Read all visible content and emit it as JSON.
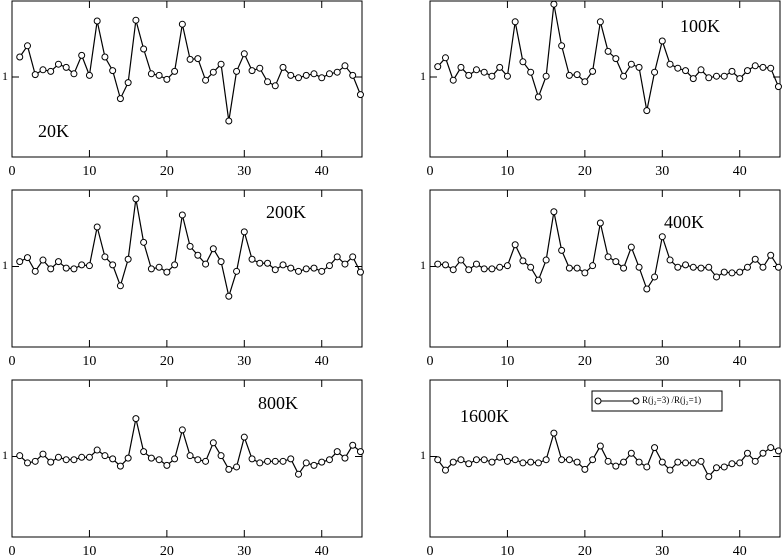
{
  "chart_data": [
    {
      "type": "line",
      "annotation": "20K",
      "x": [
        1,
        2,
        3,
        4,
        5,
        6,
        7,
        8,
        9,
        10,
        11,
        12,
        13,
        14,
        15,
        16,
        17,
        18,
        19,
        20,
        21,
        22,
        23,
        24,
        25,
        26,
        27,
        28,
        29,
        30,
        31,
        32,
        33,
        34,
        35,
        36,
        37,
        38,
        39,
        40,
        41,
        42,
        43,
        44,
        45
      ],
      "xlim": [
        0,
        45.2
      ],
      "xticks": [
        0,
        10,
        20,
        30,
        40
      ],
      "ylim": [
        0,
        1.95
      ],
      "yticks": [
        1
      ],
      "series": [
        {
          "color": "#000000",
          "values": [
            1.25,
            1.39,
            1.03,
            1.09,
            1.07,
            1.16,
            1.12,
            1.04,
            1.27,
            1.02,
            1.7,
            1.25,
            1.08,
            0.73,
            0.93,
            1.71,
            1.35,
            1.04,
            1.02,
            0.97,
            1.07,
            1.66,
            1.22,
            1.23,
            0.96,
            1.06,
            1.16,
            0.45,
            1.07,
            1.29,
            1.08,
            1.11,
            0.94,
            0.89,
            1.12,
            1.02,
            0.99,
            1.02,
            1.04,
            0.99,
            1.04,
            1.06,
            1.14,
            1.02,
            0.78
          ]
        }
      ]
    },
    {
      "type": "line",
      "annotation": "100K",
      "x": [
        1,
        2,
        3,
        4,
        5,
        6,
        7,
        8,
        9,
        10,
        11,
        12,
        13,
        14,
        15,
        16,
        17,
        18,
        19,
        20,
        21,
        22,
        23,
        24,
        25,
        26,
        27,
        28,
        29,
        30,
        31,
        32,
        33,
        34,
        35,
        36,
        37,
        38,
        39,
        40,
        41,
        42,
        43,
        44,
        45
      ],
      "xlim": [
        0,
        45.2
      ],
      "xticks": [
        0,
        10,
        20,
        30,
        40
      ],
      "ylim": [
        0,
        1.95
      ],
      "yticks": [
        1
      ],
      "series": [
        {
          "color": "#000000",
          "values": [
            1.13,
            1.24,
            0.96,
            1.12,
            1.02,
            1.09,
            1.06,
            1.01,
            1.12,
            1.01,
            1.69,
            1.19,
            1.06,
            0.75,
            1.01,
            1.91,
            1.39,
            1.02,
            1.03,
            0.94,
            1.07,
            1.69,
            1.32,
            1.23,
            1.01,
            1.16,
            1.12,
            0.58,
            1.06,
            1.45,
            1.16,
            1.11,
            1.08,
            0.98,
            1.09,
            0.99,
            1.01,
            1.01,
            1.07,
            0.98,
            1.08,
            1.14,
            1.12,
            1.11,
            0.88
          ]
        }
      ]
    },
    {
      "type": "line",
      "annotation": "200K",
      "x": [
        1,
        2,
        3,
        4,
        5,
        6,
        7,
        8,
        9,
        10,
        11,
        12,
        13,
        14,
        15,
        16,
        17,
        18,
        19,
        20,
        21,
        22,
        23,
        24,
        25,
        26,
        27,
        28,
        29,
        30,
        31,
        32,
        33,
        34,
        35,
        36,
        37,
        38,
        39,
        40,
        41,
        42,
        43,
        44,
        45
      ],
      "xlim": [
        0,
        45.2
      ],
      "xticks": [
        0,
        10,
        20,
        30,
        40
      ],
      "ylim": [
        0,
        1.95
      ],
      "yticks": [
        1
      ],
      "series": [
        {
          "color": "#000000",
          "values": [
            1.06,
            1.11,
            0.94,
            1.08,
            0.97,
            1.06,
            0.98,
            0.97,
            1.02,
            1.01,
            1.49,
            1.12,
            1.02,
            0.76,
            1.09,
            1.84,
            1.3,
            0.97,
            0.99,
            0.93,
            1.02,
            1.64,
            1.25,
            1.14,
            1.03,
            1.22,
            1.06,
            0.63,
            0.94,
            1.43,
            1.09,
            1.04,
            1.04,
            0.96,
            1.02,
            0.98,
            0.94,
            0.97,
            0.98,
            0.94,
            1.01,
            1.12,
            1.03,
            1.12,
            0.93
          ]
        }
      ]
    },
    {
      "type": "line",
      "annotation": "400K",
      "x": [
        1,
        2,
        3,
        4,
        5,
        6,
        7,
        8,
        9,
        10,
        11,
        12,
        13,
        14,
        15,
        16,
        17,
        18,
        19,
        20,
        21,
        22,
        23,
        24,
        25,
        26,
        27,
        28,
        29,
        30,
        31,
        32,
        33,
        34,
        35,
        36,
        37,
        38,
        39,
        40,
        41,
        42,
        43,
        44,
        45
      ],
      "xlim": [
        0,
        45.2
      ],
      "xticks": [
        0,
        10,
        20,
        30,
        40
      ],
      "ylim": [
        0,
        1.95
      ],
      "yticks": [
        1
      ],
      "series": [
        {
          "color": "#000000",
          "values": [
            1.03,
            1.02,
            0.96,
            1.08,
            0.96,
            1.03,
            0.97,
            0.97,
            0.99,
            1.01,
            1.27,
            1.07,
            0.99,
            0.83,
            1.08,
            1.68,
            1.2,
            0.98,
            0.98,
            0.92,
            1.01,
            1.54,
            1.12,
            1.06,
            0.98,
            1.24,
            0.99,
            0.72,
            0.87,
            1.37,
            1.08,
            0.99,
            1.02,
            0.99,
            0.98,
            0.99,
            0.87,
            0.93,
            0.92,
            0.93,
            0.99,
            1.09,
            0.99,
            1.14,
            0.99
          ]
        }
      ]
    },
    {
      "type": "line",
      "annotation": "800K",
      "x": [
        1,
        2,
        3,
        4,
        5,
        6,
        7,
        8,
        9,
        10,
        11,
        12,
        13,
        14,
        15,
        16,
        17,
        18,
        19,
        20,
        21,
        22,
        23,
        24,
        25,
        26,
        27,
        28,
        29,
        30,
        31,
        32,
        33,
        34,
        35,
        36,
        37,
        38,
        39,
        40,
        41,
        42,
        43,
        44,
        45
      ],
      "xlim": [
        0,
        45.2
      ],
      "xticks": [
        0,
        10,
        20,
        30,
        40
      ],
      "ylim": [
        0,
        1.95
      ],
      "yticks": [
        1
      ],
      "series": [
        {
          "color": "#000000",
          "values": [
            1.01,
            0.92,
            0.94,
            1.03,
            0.93,
            0.99,
            0.96,
            0.96,
            0.99,
            0.99,
            1.08,
            1.01,
            0.97,
            0.88,
            0.98,
            1.47,
            1.06,
            0.98,
            0.96,
            0.89,
            0.97,
            1.33,
            1.01,
            0.96,
            0.94,
            1.17,
            1.01,
            0.84,
            0.87,
            1.24,
            0.97,
            0.92,
            0.94,
            0.94,
            0.94,
            0.97,
            0.78,
            0.92,
            0.89,
            0.93,
            0.96,
            1.06,
            0.98,
            1.14,
            1.06
          ]
        }
      ]
    },
    {
      "type": "line",
      "annotation": "1600K",
      "legend": "upper right",
      "x": [
        1,
        2,
        3,
        4,
        5,
        6,
        7,
        8,
        9,
        10,
        11,
        12,
        13,
        14,
        15,
        16,
        17,
        18,
        19,
        20,
        21,
        22,
        23,
        24,
        25,
        26,
        27,
        28,
        29,
        30,
        31,
        32,
        33,
        34,
        35,
        36,
        37,
        38,
        39,
        40,
        41,
        42,
        43,
        44,
        45
      ],
      "xlim": [
        0,
        45.2
      ],
      "xticks": [
        0,
        10,
        20,
        30,
        40
      ],
      "ylim": [
        0,
        1.95
      ],
      "yticks": [
        1
      ],
      "series": [
        {
          "name": "R(j₂=3) /R(j₂=1)",
          "color": "#000000",
          "values": [
            0.96,
            0.83,
            0.93,
            0.96,
            0.91,
            0.96,
            0.96,
            0.93,
            0.99,
            0.94,
            0.96,
            0.92,
            0.93,
            0.92,
            0.96,
            1.29,
            0.96,
            0.96,
            0.93,
            0.84,
            0.96,
            1.13,
            0.94,
            0.88,
            0.93,
            1.04,
            0.93,
            0.87,
            1.11,
            0.93,
            0.83,
            0.93,
            0.92,
            0.92,
            0.94,
            0.75,
            0.86,
            0.87,
            0.91,
            0.92,
            1.04,
            0.94,
            1.04,
            1.11,
            1.07
          ]
        }
      ]
    }
  ]
}
